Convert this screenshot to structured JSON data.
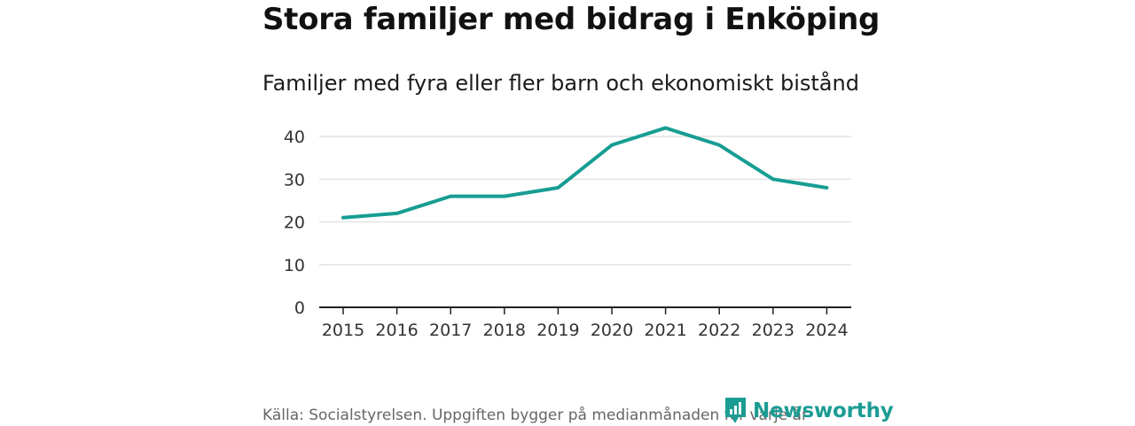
{
  "chart_data": {
    "type": "line",
    "title": "Stora familjer med bidrag i Enköping",
    "subtitle": "Familjer med fyra eller fler barn och ekonomiskt bistånd",
    "x": [
      "2015",
      "2016",
      "2017",
      "2018",
      "2019",
      "2020",
      "2021",
      "2022",
      "2023",
      "2024"
    ],
    "series": [
      {
        "name": "Familjer med fyra eller fler barn och ekonomiskt bistånd",
        "values": [
          21,
          22,
          26,
          26,
          28,
          38,
          42,
          38,
          30,
          28
        ]
      }
    ],
    "y_ticks": [
      "0",
      "10",
      "20",
      "30",
      "40"
    ],
    "ylim": [
      0,
      45
    ],
    "xlabel": "",
    "ylabel": "",
    "grid": true,
    "legend": "none"
  },
  "footer": {
    "source": "Källa: Socialstyrelsen. Uppgiften bygger på medianmånaden för varje år"
  },
  "brand": {
    "name": "Newsworthy",
    "icon": "newsworthy-logo-icon"
  },
  "colors": {
    "line": "#179d93",
    "grid": "#dddddd",
    "axis": "#222222",
    "brand": "#1b9c93"
  }
}
